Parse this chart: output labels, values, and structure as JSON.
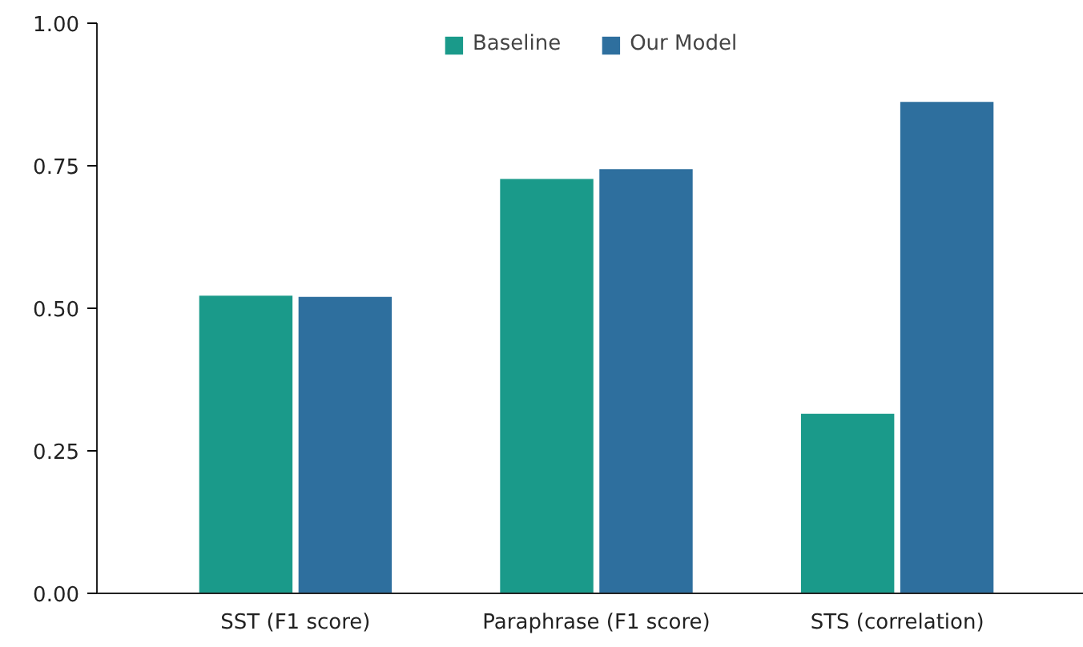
{
  "chart_data": {
    "type": "bar",
    "categories": [
      "SST (F1 score)",
      "Paraphrase (F1 score)",
      "STS (correlation)"
    ],
    "series": [
      {
        "name": "Baseline",
        "color": "#1a9a8a",
        "values": [
          0.522,
          0.727,
          0.315
        ]
      },
      {
        "name": "Our Model",
        "color": "#2e6f9e",
        "values": [
          0.52,
          0.744,
          0.862
        ]
      }
    ],
    "ylim": [
      0,
      1
    ],
    "yticks": [
      {
        "value": 0,
        "label": "0.00"
      },
      {
        "value": 0.25,
        "label": "0.25"
      },
      {
        "value": 0.5,
        "label": "0.50"
      },
      {
        "value": 0.75,
        "label": "0.75"
      },
      {
        "value": 1,
        "label": "1.00"
      }
    ],
    "grid": false,
    "legend": "top"
  }
}
